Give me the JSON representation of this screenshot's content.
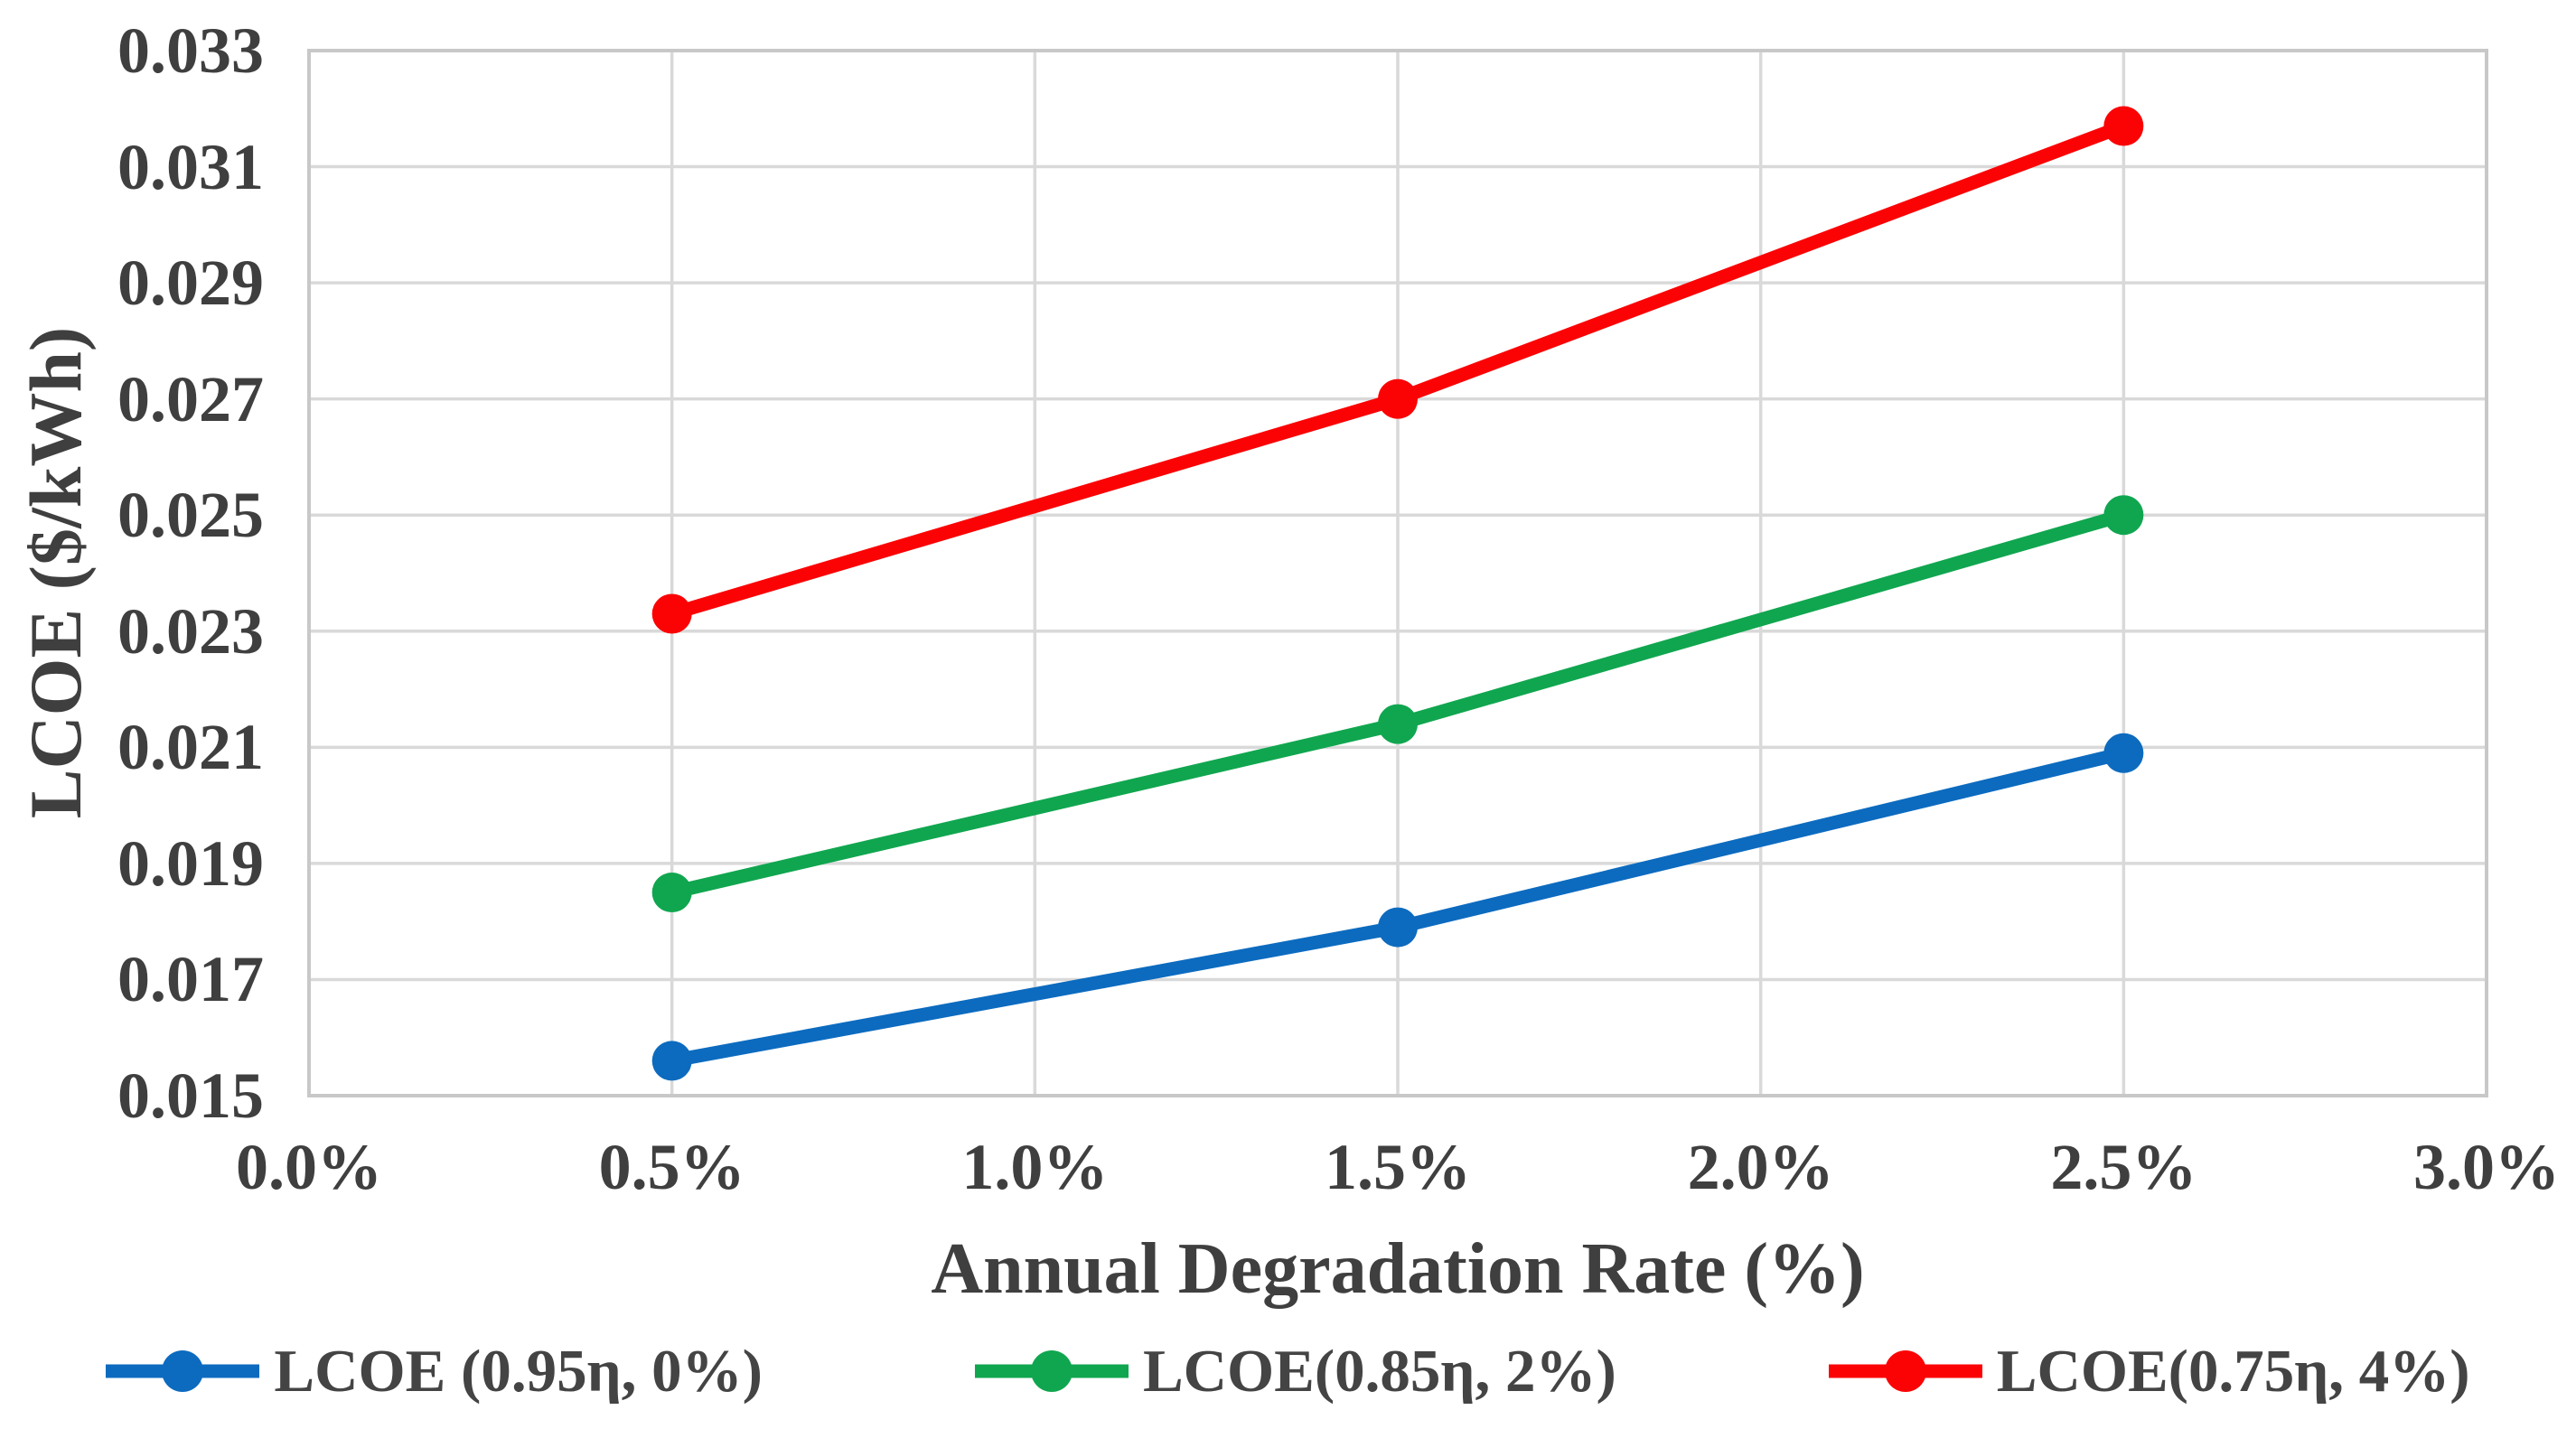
{
  "chart_data": {
    "type": "line",
    "title": "",
    "xlabel": "Annual Degradation Rate (%)",
    "ylabel": "LCOE ($/kWh)",
    "xlim": [
      0.0,
      3.0
    ],
    "ylim": [
      0.015,
      0.033
    ],
    "grid": true,
    "legend_position": "bottom",
    "x_ticks": [
      {
        "value": 0.0,
        "label": "0.0%"
      },
      {
        "value": 0.5,
        "label": "0.5%"
      },
      {
        "value": 1.0,
        "label": "1.0%"
      },
      {
        "value": 1.5,
        "label": "1.5%"
      },
      {
        "value": 2.0,
        "label": "2.0%"
      },
      {
        "value": 2.5,
        "label": "2.5%"
      },
      {
        "value": 3.0,
        "label": "3.0%"
      }
    ],
    "y_ticks": [
      {
        "value": 0.015,
        "label": "0.015"
      },
      {
        "value": 0.017,
        "label": "0.017"
      },
      {
        "value": 0.019,
        "label": "0.019"
      },
      {
        "value": 0.021,
        "label": "0.021"
      },
      {
        "value": 0.023,
        "label": "0.023"
      },
      {
        "value": 0.025,
        "label": "0.025"
      },
      {
        "value": 0.027,
        "label": "0.027"
      },
      {
        "value": 0.029,
        "label": "0.029"
      },
      {
        "value": 0.031,
        "label": "0.031"
      },
      {
        "value": 0.033,
        "label": "0.033"
      }
    ],
    "series": [
      {
        "name": "LCOE (0.95η, 0%)",
        "color": "#0c6bbf",
        "marker": "circle",
        "x": [
          0.5,
          1.5,
          2.5
        ],
        "values": [
          0.0156,
          0.0179,
          0.0209
        ]
      },
      {
        "name": "LCOE(0.85η, 2%)",
        "color": "#10a64f",
        "marker": "circle",
        "x": [
          0.5,
          1.5,
          2.5
        ],
        "values": [
          0.0185,
          0.0214,
          0.025
        ]
      },
      {
        "name": "LCOE(0.75η, 4%)",
        "color": "#fb0304",
        "marker": "circle",
        "x": [
          0.5,
          1.5,
          2.5
        ],
        "values": [
          0.0233,
          0.027,
          0.0317
        ]
      }
    ],
    "colors": {
      "gridline": "#d9d9d9",
      "border": "#c8c8c8",
      "text": "#3f3f3f",
      "background": "#ffffff"
    }
  }
}
